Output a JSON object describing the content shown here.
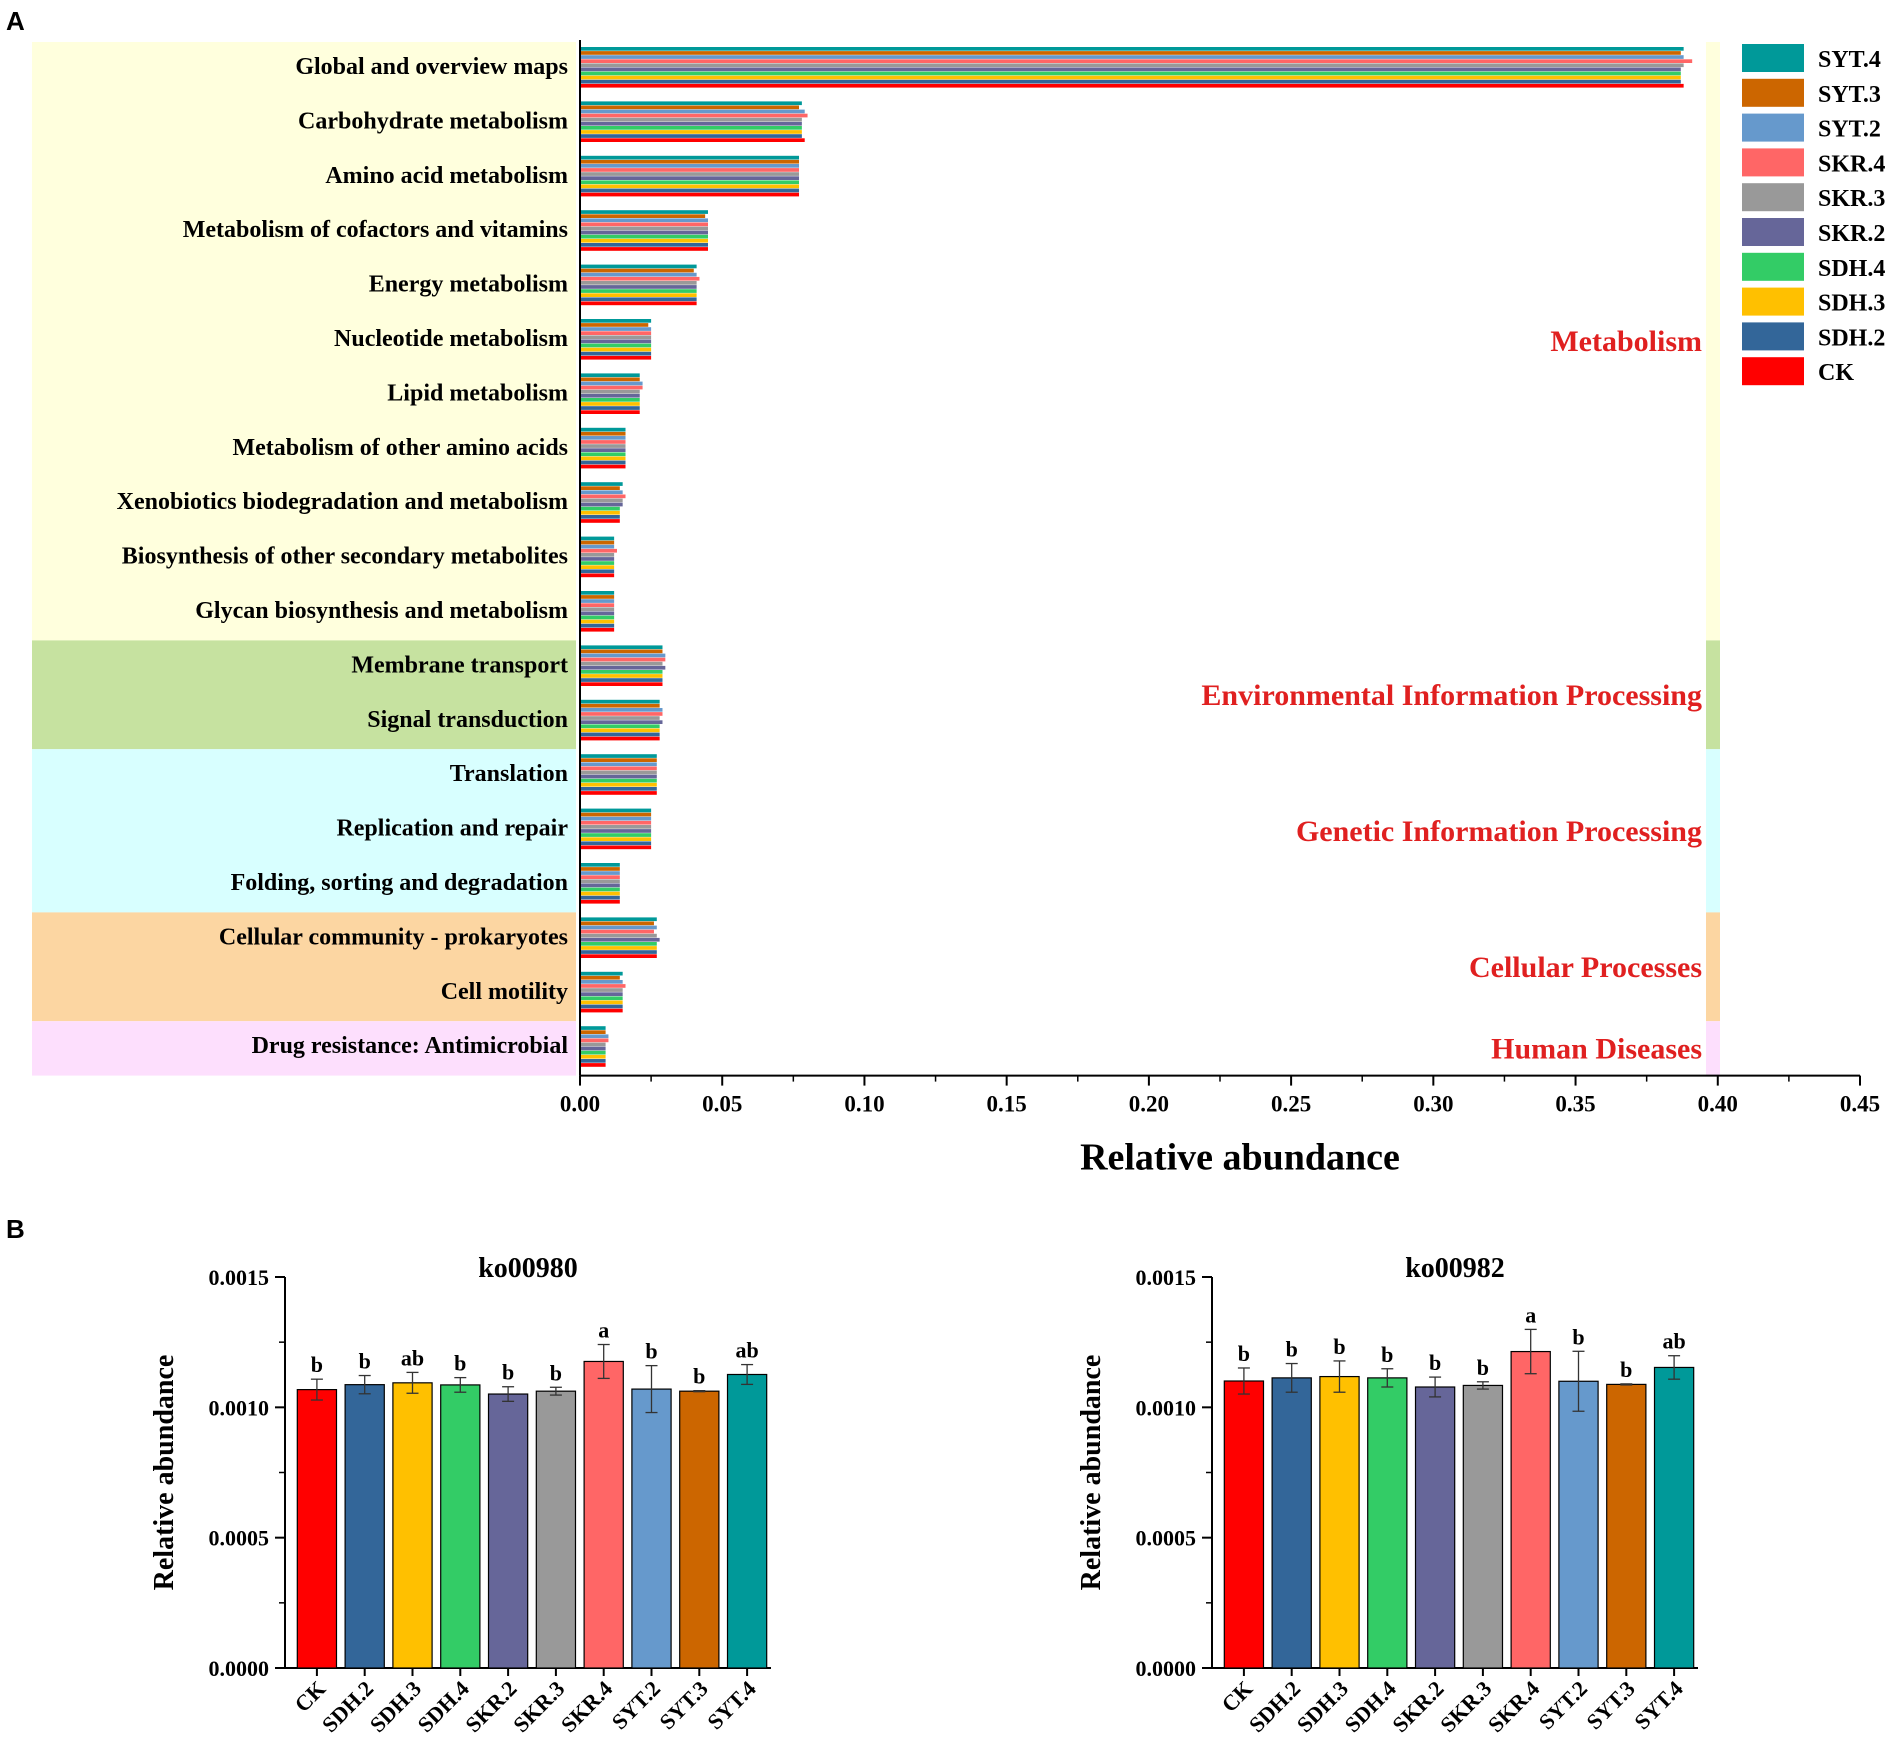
{
  "panel_a_label": "A",
  "panel_b_label": "B",
  "chart_data": [
    {
      "type": "bar",
      "orientation": "horizontal",
      "panel": "A",
      "xlabel": "Relative abundance",
      "xlim": [
        0,
        0.45
      ],
      "xticks": [
        "0.00",
        "0.05",
        "0.10",
        "0.15",
        "0.20",
        "0.25",
        "0.30",
        "0.35",
        "0.40",
        "0.45"
      ],
      "xtick_values": [
        0,
        0.05,
        0.1,
        0.15,
        0.2,
        0.25,
        0.3,
        0.35,
        0.4,
        0.45
      ],
      "categories": [
        "Global and overview maps",
        "Carbohydrate metabolism",
        "Amino acid metabolism",
        "Metabolism of cofactors and vitamins",
        "Energy metabolism",
        "Nucleotide metabolism",
        "Lipid metabolism",
        "Metabolism of other amino acids",
        "Xenobiotics biodegradation and metabolism",
        "Biosynthesis of other secondary metabolites",
        "Glycan biosynthesis and metabolism",
        "Membrane transport",
        "Signal transduction",
        "Translation",
        "Replication and repair",
        "Folding, sorting and degradation",
        "Cellular community - prokaryotes",
        "Cell motility",
        "Drug resistance: Antimicrobial"
      ],
      "groups": [
        {
          "name": "Metabolism",
          "start": 0,
          "end": 10,
          "color": "#FFFFDD"
        },
        {
          "name": "Environmental Information Processing",
          "start": 11,
          "end": 12,
          "color": "#C6E2A0"
        },
        {
          "name": "Genetic Information Processing",
          "start": 13,
          "end": 15,
          "color": "#D8FFFF"
        },
        {
          "name": "Cellular Processes",
          "start": 16,
          "end": 17,
          "color": "#FCD6A2"
        },
        {
          "name": "Human Diseases",
          "start": 18,
          "end": 18,
          "color": "#FDDFFD"
        }
      ],
      "group_label_color": "#E02020",
      "legend": [
        "SYT.4",
        "SYT.3",
        "SYT.2",
        "SKR.4",
        "SKR.3",
        "SKR.2",
        "SDH.4",
        "SDH.3",
        "SDH.2",
        "CK"
      ],
      "legend_position": "top-right",
      "series": [
        {
          "name": "SYT.4",
          "color": "#009999",
          "values": [
            0.388,
            0.078,
            0.077,
            0.045,
            0.041,
            0.025,
            0.021,
            0.016,
            0.015,
            0.012,
            0.012,
            0.029,
            0.028,
            0.027,
            0.025,
            0.014,
            0.027,
            0.015,
            0.009
          ]
        },
        {
          "name": "SYT.3",
          "color": "#CC6600",
          "values": [
            0.387,
            0.077,
            0.077,
            0.044,
            0.04,
            0.024,
            0.021,
            0.016,
            0.014,
            0.012,
            0.012,
            0.029,
            0.028,
            0.027,
            0.025,
            0.014,
            0.026,
            0.014,
            0.009
          ]
        },
        {
          "name": "SYT.2",
          "color": "#6699CC",
          "values": [
            0.388,
            0.079,
            0.077,
            0.045,
            0.041,
            0.025,
            0.022,
            0.016,
            0.015,
            0.012,
            0.012,
            0.03,
            0.029,
            0.027,
            0.025,
            0.014,
            0.027,
            0.015,
            0.01
          ]
        },
        {
          "name": "SKR.4",
          "color": "#FF6666",
          "values": [
            0.391,
            0.08,
            0.077,
            0.045,
            0.042,
            0.025,
            0.022,
            0.016,
            0.016,
            0.013,
            0.012,
            0.03,
            0.029,
            0.027,
            0.025,
            0.014,
            0.026,
            0.016,
            0.01
          ]
        },
        {
          "name": "SKR.3",
          "color": "#999999",
          "values": [
            0.388,
            0.078,
            0.077,
            0.045,
            0.041,
            0.025,
            0.021,
            0.016,
            0.015,
            0.012,
            0.012,
            0.029,
            0.028,
            0.027,
            0.025,
            0.014,
            0.027,
            0.015,
            0.009
          ]
        },
        {
          "name": "SKR.2",
          "color": "#666699",
          "values": [
            0.387,
            0.078,
            0.077,
            0.045,
            0.041,
            0.025,
            0.021,
            0.016,
            0.015,
            0.012,
            0.012,
            0.03,
            0.029,
            0.027,
            0.025,
            0.014,
            0.028,
            0.015,
            0.009
          ]
        },
        {
          "name": "SDH.4",
          "color": "#33CC66",
          "values": [
            0.387,
            0.078,
            0.077,
            0.045,
            0.041,
            0.025,
            0.021,
            0.016,
            0.014,
            0.012,
            0.012,
            0.029,
            0.028,
            0.027,
            0.025,
            0.014,
            0.027,
            0.015,
            0.009
          ]
        },
        {
          "name": "SDH.3",
          "color": "#FFC000",
          "values": [
            0.387,
            0.078,
            0.077,
            0.045,
            0.041,
            0.025,
            0.021,
            0.016,
            0.014,
            0.012,
            0.012,
            0.029,
            0.028,
            0.027,
            0.025,
            0.014,
            0.027,
            0.015,
            0.009
          ]
        },
        {
          "name": "SDH.2",
          "color": "#336699",
          "values": [
            0.387,
            0.078,
            0.077,
            0.045,
            0.041,
            0.025,
            0.021,
            0.016,
            0.014,
            0.012,
            0.012,
            0.029,
            0.028,
            0.027,
            0.025,
            0.014,
            0.027,
            0.015,
            0.009
          ]
        },
        {
          "name": "CK",
          "color": "#FF0000",
          "values": [
            0.388,
            0.079,
            0.077,
            0.045,
            0.041,
            0.025,
            0.021,
            0.016,
            0.014,
            0.012,
            0.012,
            0.029,
            0.028,
            0.027,
            0.025,
            0.014,
            0.027,
            0.015,
            0.009
          ]
        }
      ]
    },
    {
      "type": "bar",
      "panel": "B",
      "title": "ko00980",
      "ylabel": "Relative abundance",
      "ylim": [
        0,
        0.0015
      ],
      "yticks": [
        "0.0000",
        "0.0005",
        "0.0010",
        "0.0015"
      ],
      "ytick_values": [
        0,
        0.0005,
        0.001,
        0.0015
      ],
      "categories": [
        "CK",
        "SDH.2",
        "SDH.3",
        "SDH.4",
        "SKR.2",
        "SKR.3",
        "SKR.4",
        "SYT.2",
        "SYT.3",
        "SYT.4"
      ],
      "colors": [
        "#FF0000",
        "#336699",
        "#FFC000",
        "#33CC66",
        "#666699",
        "#999999",
        "#FF6666",
        "#6699CC",
        "#CC6600",
        "#009999"
      ],
      "values": [
        0.001068,
        0.001087,
        0.001094,
        0.001086,
        0.001051,
        0.001062,
        0.001176,
        0.00107,
        0.001062,
        0.001126
      ],
      "errors": [
        4e-05,
        3.5e-05,
        4e-05,
        2.8e-05,
        2.8e-05,
        1.5e-05,
        6.5e-05,
        9e-05,
        2e-06,
        3.8e-05
      ],
      "letters": [
        "b",
        "b",
        "ab",
        "b",
        "b",
        "b",
        "a",
        "b",
        "b",
        "ab"
      ]
    },
    {
      "type": "bar",
      "panel": "B",
      "title": "ko00982",
      "ylabel": "Relative abundance",
      "ylim": [
        0,
        0.0015
      ],
      "yticks": [
        "0.0000",
        "0.0005",
        "0.0010",
        "0.0015"
      ],
      "ytick_values": [
        0,
        0.0005,
        0.001,
        0.0015
      ],
      "categories": [
        "CK",
        "SDH.2",
        "SDH.3",
        "SDH.4",
        "SKR.2",
        "SKR.3",
        "SKR.4",
        "SYT.2",
        "SYT.3",
        "SYT.4"
      ],
      "colors": [
        "#FF0000",
        "#336699",
        "#FFC000",
        "#33CC66",
        "#666699",
        "#999999",
        "#FF6666",
        "#6699CC",
        "#CC6600",
        "#009999"
      ],
      "values": [
        0.001101,
        0.001113,
        0.001118,
        0.001113,
        0.001078,
        0.001084,
        0.001214,
        0.0011,
        0.001088,
        0.001153
      ],
      "errors": [
        5e-05,
        5.5e-05,
        6e-05,
        3.5e-05,
        3.8e-05,
        1.4e-05,
        8.5e-05,
        0.000115,
        2e-06,
        4.5e-05
      ],
      "letters": [
        "b",
        "b",
        "b",
        "b",
        "b",
        "b",
        "a",
        "b",
        "b",
        "ab"
      ]
    }
  ]
}
